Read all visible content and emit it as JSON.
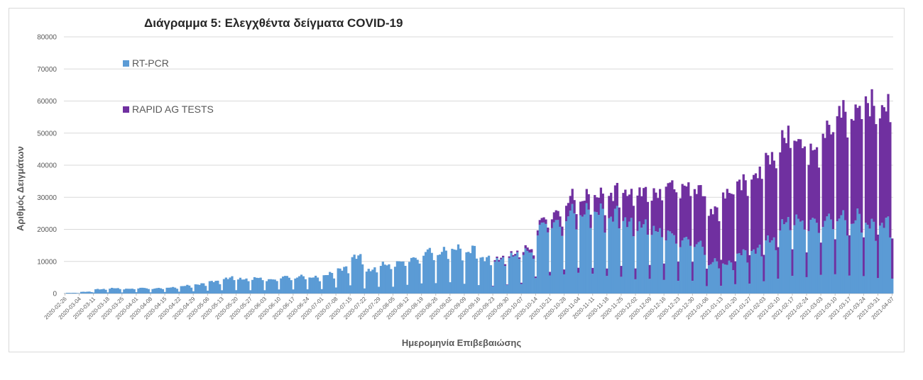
{
  "chart_data": {
    "type": "bar",
    "stacked": true,
    "title": "Διάγραμμα 5: Ελεγχθέντα δείγματα COVID-19",
    "xlabel": "Ημερομηνία Επιβεβαιώσης",
    "ylabel": "Αριθμός Δειγμάτων",
    "ylim": [
      0,
      80000
    ],
    "yticks": [
      0,
      10000,
      20000,
      30000,
      40000,
      50000,
      60000,
      70000,
      80000
    ],
    "grid": true,
    "legend_position": "top-left",
    "series": [
      {
        "name": "RT-PCR",
        "color": "#5b9bd5",
        "weekly_values": [
          200,
          500,
          1300,
          1500,
          1400,
          1600,
          1500,
          1800,
          2200,
          2800,
          3500,
          4500,
          4300,
          4400,
          4200,
          4800,
          5000,
          4800,
          5500,
          7500,
          10500,
          7000,
          8500,
          9000,
          10500,
          12000,
          12500,
          13000,
          12500,
          10500,
          9500,
          11500,
          12000,
          20000,
          21000,
          23000,
          24500,
          23500,
          23000,
          21000,
          19500,
          19000,
          17000,
          16000,
          14500,
          9000,
          9000,
          11500,
          13000,
          15500,
          20500,
          22000,
          20500,
          22500,
          22000,
          22000,
          20500,
          20000,
          19500
        ]
      },
      {
        "name": "RAPID AG TESTS",
        "color": "#7030a0",
        "weekly_values": [
          0,
          0,
          0,
          0,
          0,
          0,
          0,
          0,
          0,
          0,
          0,
          0,
          0,
          0,
          0,
          0,
          0,
          0,
          0,
          0,
          0,
          0,
          0,
          0,
          0,
          0,
          0,
          0,
          0,
          0,
          500,
          500,
          1000,
          1500,
          3000,
          4500,
          4500,
          5000,
          7000,
          9000,
          10500,
          11500,
          15500,
          16500,
          17000,
          16000,
          22000,
          22000,
          23500,
          25500,
          26500,
          24500,
          22000,
          28000,
          33000,
          33500,
          37500,
          36000,
          38000
        ]
      }
    ],
    "categories": [
      "2020-02-26",
      "2020-03-04",
      "2020-03-11",
      "2020-03-18",
      "2020-03-25",
      "2020-04-01",
      "2020-04-08",
      "2020-04-15",
      "2020-04-22",
      "2020-04-29",
      "2020-05-06",
      "2020-05-13",
      "2020-05-20",
      "2020-05-27",
      "2020-06-03",
      "2020-06-10",
      "2020-06-17",
      "2020-06-24",
      "2020-07-01",
      "2020-07-08",
      "2020-07-15",
      "2020-07-22",
      "2020-07-29",
      "2020-08-05",
      "2020-08-12",
      "2020-08-19",
      "2020-08-26",
      "2020-09-02",
      "2020-09-09",
      "2020-09-16",
      "2020-09-23",
      "2020-09-30",
      "2020-10-07",
      "2020-10-14",
      "2020-10-21",
      "2020-10-28",
      "2020-11-04",
      "2020-11-11",
      "2020-11-18",
      "2020-11-25",
      "2020-12-02",
      "2020-12-09",
      "2020-12-16",
      "2020-12-23",
      "2020-12-30",
      "2021-01-06",
      "2021-01-13",
      "2021-01-20",
      "2021-01-27",
      "2021-02-03",
      "2021-02-10",
      "2021-02-17",
      "2021-02-24",
      "2021-03-03",
      "2021-03-10",
      "2021-03-17",
      "2021-03-24",
      "2021-03-31",
      "2021-04-07"
    ]
  }
}
